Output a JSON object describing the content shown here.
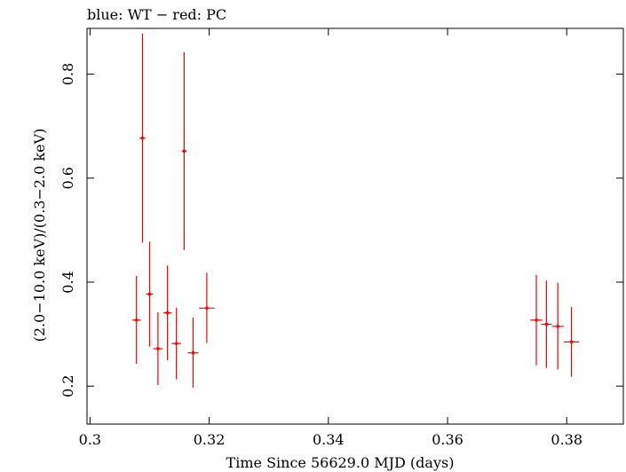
{
  "chart_data": {
    "type": "scatter",
    "title": "blue: WT − red: PC",
    "xlabel": "Time Since 56629.0 MJD (days)",
    "ylabel": "(2.0−10.0 keV)/(0.3−2.0 keV)",
    "xlim": [
      0.2995,
      0.3895
    ],
    "ylim": [
      0.127,
      0.888
    ],
    "xticks": [
      0.3,
      0.32,
      0.34,
      0.36,
      0.38
    ],
    "xtick_labels": [
      "0.3",
      "0.32",
      "0.34",
      "0.36",
      "0.38"
    ],
    "yticks": [
      0.2,
      0.4,
      0.6,
      0.8
    ],
    "ytick_labels": [
      "0.2",
      "0.4",
      "0.6",
      "0.8"
    ],
    "grid": false,
    "series": [
      {
        "name": "PC",
        "color": "#ff0000",
        "points": [
          {
            "x": 0.3078,
            "xerr": 0.0007,
            "y": 0.327,
            "ylo": 0.243,
            "yhi": 0.412
          },
          {
            "x": 0.3088,
            "xerr": 0.0005,
            "y": 0.677,
            "ylo": 0.476,
            "yhi": 0.878
          },
          {
            "x": 0.31,
            "xerr": 0.0006,
            "y": 0.377,
            "ylo": 0.276,
            "yhi": 0.478
          },
          {
            "x": 0.3114,
            "xerr": 0.0008,
            "y": 0.272,
            "ylo": 0.202,
            "yhi": 0.342
          },
          {
            "x": 0.313,
            "xerr": 0.0007,
            "y": 0.341,
            "ylo": 0.25,
            "yhi": 0.432
          },
          {
            "x": 0.3145,
            "xerr": 0.0008,
            "y": 0.282,
            "ylo": 0.213,
            "yhi": 0.351
          },
          {
            "x": 0.3158,
            "xerr": 0.0004,
            "y": 0.652,
            "ylo": 0.462,
            "yhi": 0.842
          },
          {
            "x": 0.3173,
            "xerr": 0.0009,
            "y": 0.264,
            "ylo": 0.197,
            "yhi": 0.332
          },
          {
            "x": 0.3196,
            "xerr": 0.0013,
            "y": 0.35,
            "ylo": 0.283,
            "yhi": 0.418
          },
          {
            "x": 0.3749,
            "xerr": 0.001,
            "y": 0.327,
            "ylo": 0.24,
            "yhi": 0.414
          },
          {
            "x": 0.3766,
            "xerr": 0.0009,
            "y": 0.319,
            "ylo": 0.235,
            "yhi": 0.403
          },
          {
            "x": 0.3785,
            "xerr": 0.001,
            "y": 0.315,
            "ylo": 0.232,
            "yhi": 0.399
          },
          {
            "x": 0.3808,
            "xerr": 0.0013,
            "y": 0.285,
            "ylo": 0.218,
            "yhi": 0.352
          }
        ]
      }
    ]
  }
}
